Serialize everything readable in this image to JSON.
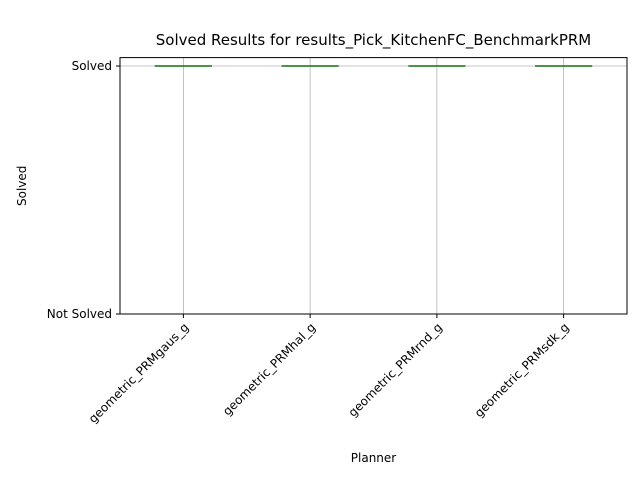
{
  "chart_data": {
    "type": "box",
    "title": "Solved Results for results_Pick_KitchenFC_BenchmarkPRM",
    "xlabel": "Planner",
    "ylabel": "Solved",
    "categories": [
      "geometric_PRMgaus_g",
      "geometric_PRMhal_g",
      "geometric_PRMrnd_g",
      "geometric_PRMsdk_g"
    ],
    "y_ticks": [
      {
        "value": 0,
        "label": "Not Solved"
      },
      {
        "value": 1,
        "label": "Solved"
      }
    ],
    "series": [
      {
        "values": [
          1,
          1,
          1,
          1
        ]
      }
    ],
    "ylim": [
      0,
      1
    ],
    "grid": true,
    "median_color": "#2ca02c"
  }
}
